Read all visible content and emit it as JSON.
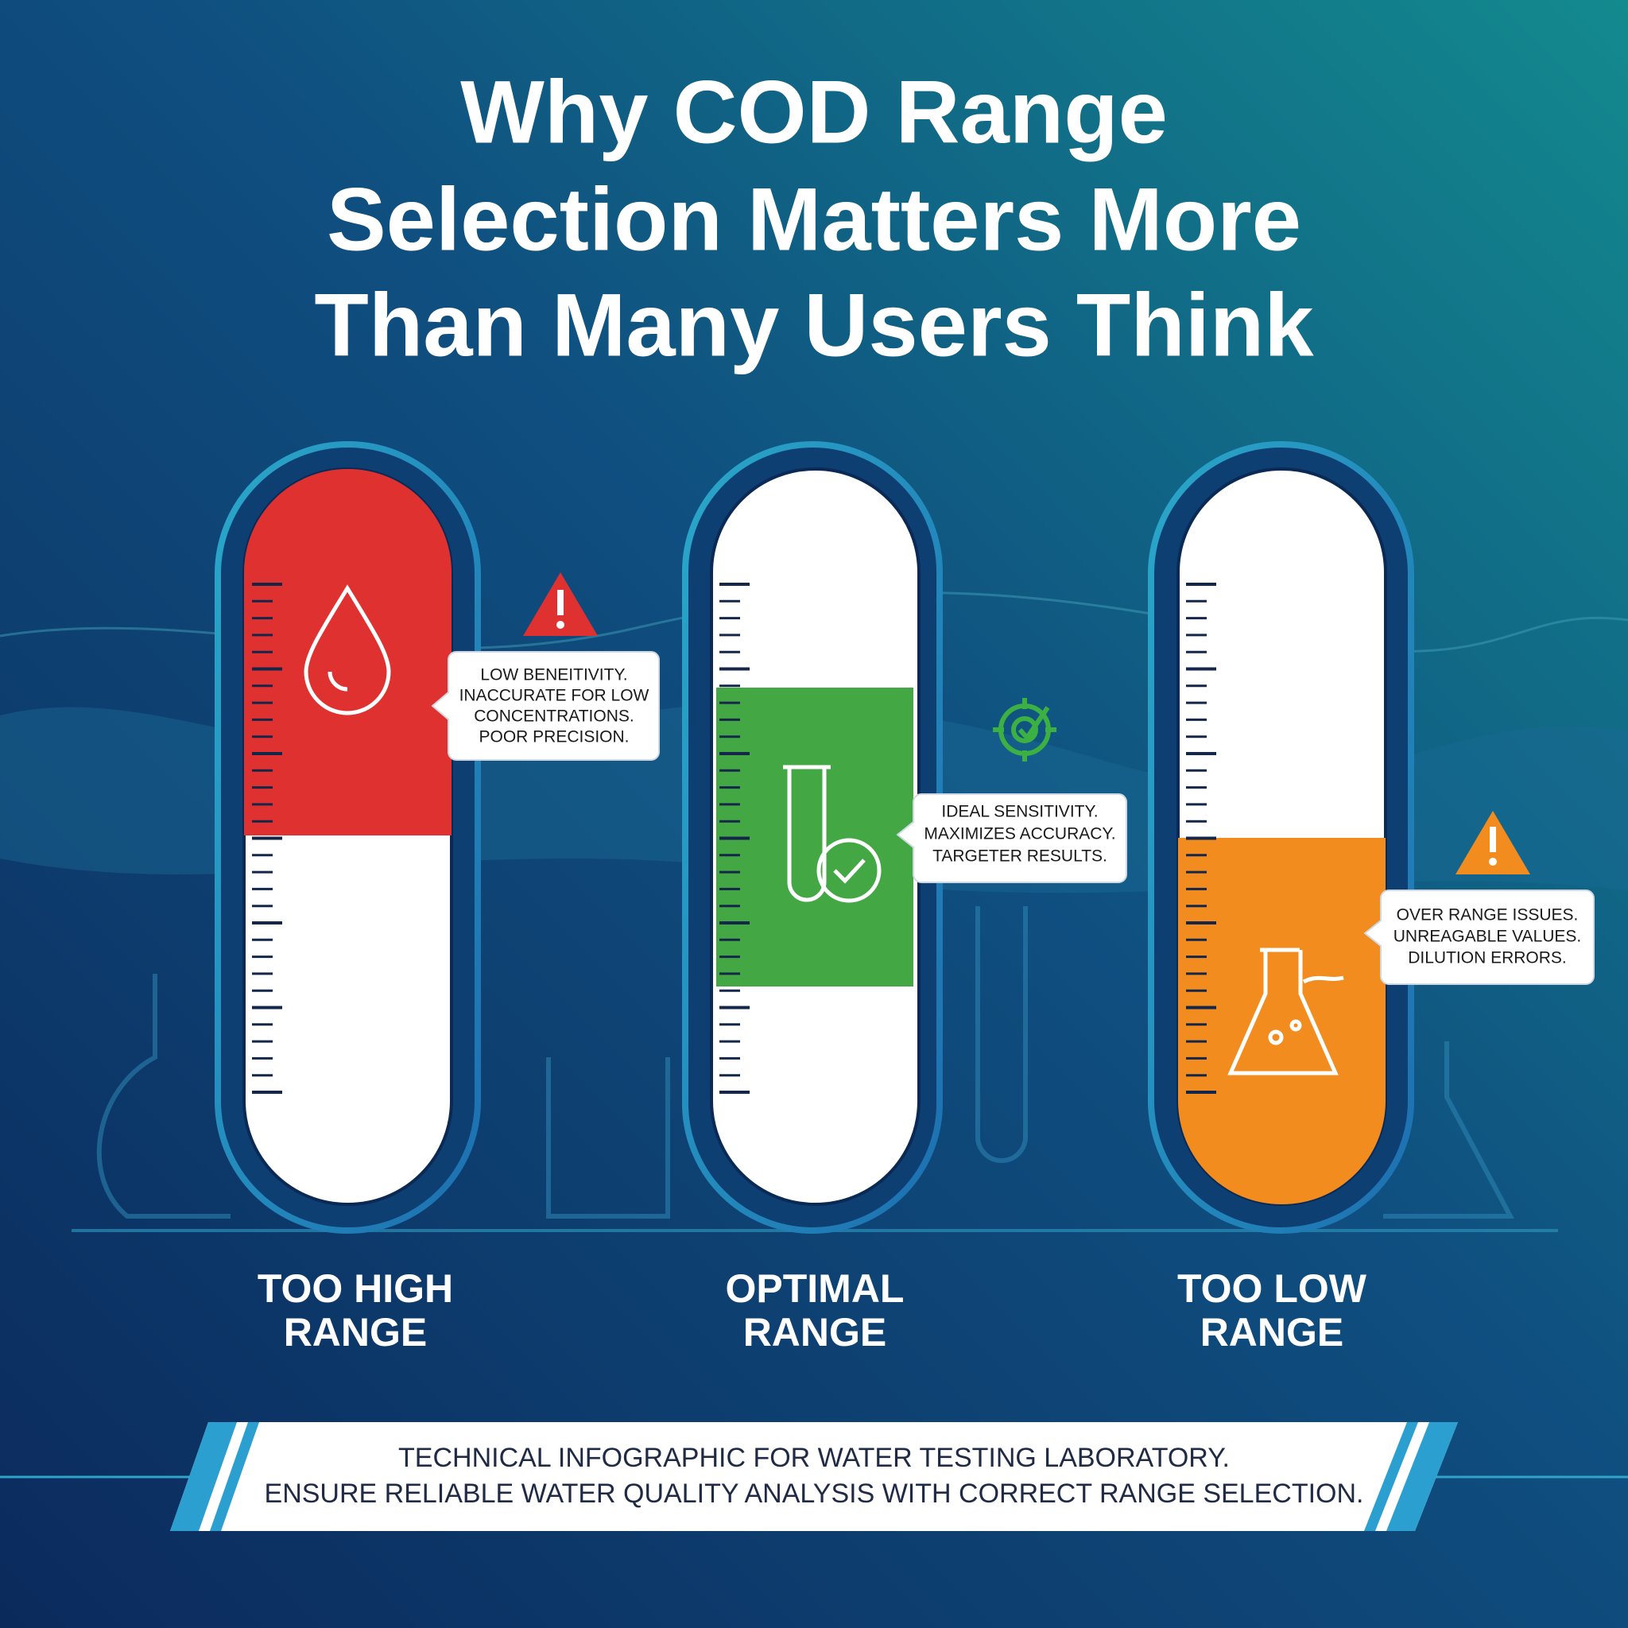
{
  "header": {
    "title": [
      "Why COD Range",
      "Selection Matters More",
      "Than Many Users Think"
    ]
  },
  "gauges": [
    {
      "label": [
        "TOO HIGH",
        "RANGE"
      ],
      "callout": [
        "LOW BENEITIVITY.",
        "INACCURATE FOR LOW",
        "CONCENTRATIONS.",
        "POOR PRECISION."
      ]
    },
    {
      "label": [
        "OPTIMAL",
        "RANGE"
      ],
      "callout": [
        "IDEAL SENSITIVITY.",
        "MAXIMIZES ACCURACY.",
        "TARGETER RESULTS."
      ]
    },
    {
      "label": [
        "TOO LOW",
        "RANGE"
      ],
      "callout": [
        "OVER RANGE ISSUES.",
        "UNREAGABLE VALUES.",
        "DILUTION ERRORS."
      ]
    }
  ],
  "footer": {
    "lines": [
      "TECHNICAL INFOGRAPHIC FOR WATER TESTING LABORATORY.",
      "ENSURE RELIABLE WATER QUALITY ANALYSIS WITH CORRECT RANGE SELECTION."
    ]
  }
}
